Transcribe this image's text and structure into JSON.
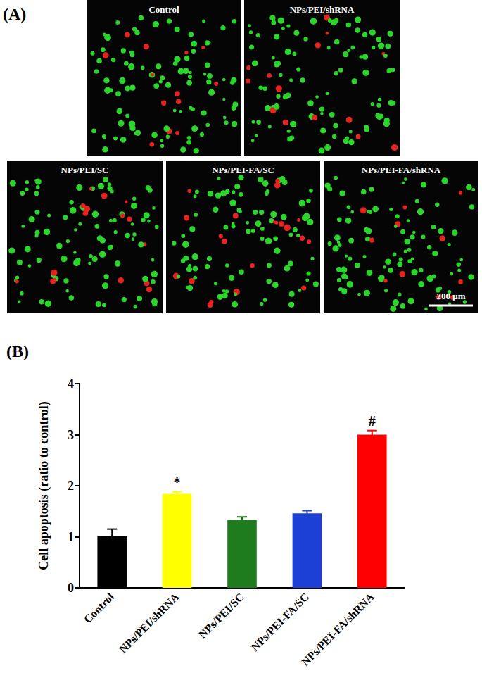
{
  "figure": {
    "panel_a": {
      "label": "(A)",
      "images": [
        "Control",
        "NPs/PEI/shRNA",
        "NPs/PEI/SC",
        "NPs/PEI-FA/SC",
        "NPs/PEI-FA/shRNA"
      ],
      "scale_bar": "200 μm"
    }
  },
  "chart_data": {
    "type": "bar",
    "title": "(B)",
    "y_label": "Cell apoptosis (ratio to control)",
    "categories": [
      "Control",
      "NPs/PEI/shRNA",
      "NPs/PEI/SC",
      "NPs/PEI-FA/SC",
      "NPs/PEI-FA/shRNA"
    ],
    "values": [
      1.02,
      1.84,
      1.33,
      1.46,
      3.0
    ],
    "errors": [
      0.13,
      0.04,
      0.06,
      0.05,
      0.08
    ],
    "colors": [
      "#000000",
      "#ffff00",
      "#1e7b1e",
      "#1c3fd6",
      "#ff0000"
    ],
    "annotations": [
      {
        "category": "NPs/PEI/shRNA",
        "text": "*"
      },
      {
        "category": "NPs/PEI-FA/shRNA",
        "text": "#"
      }
    ],
    "ylim": [
      0,
      4
    ],
    "yticks": [
      0,
      1,
      2,
      3,
      4
    ],
    "grid": false
  }
}
